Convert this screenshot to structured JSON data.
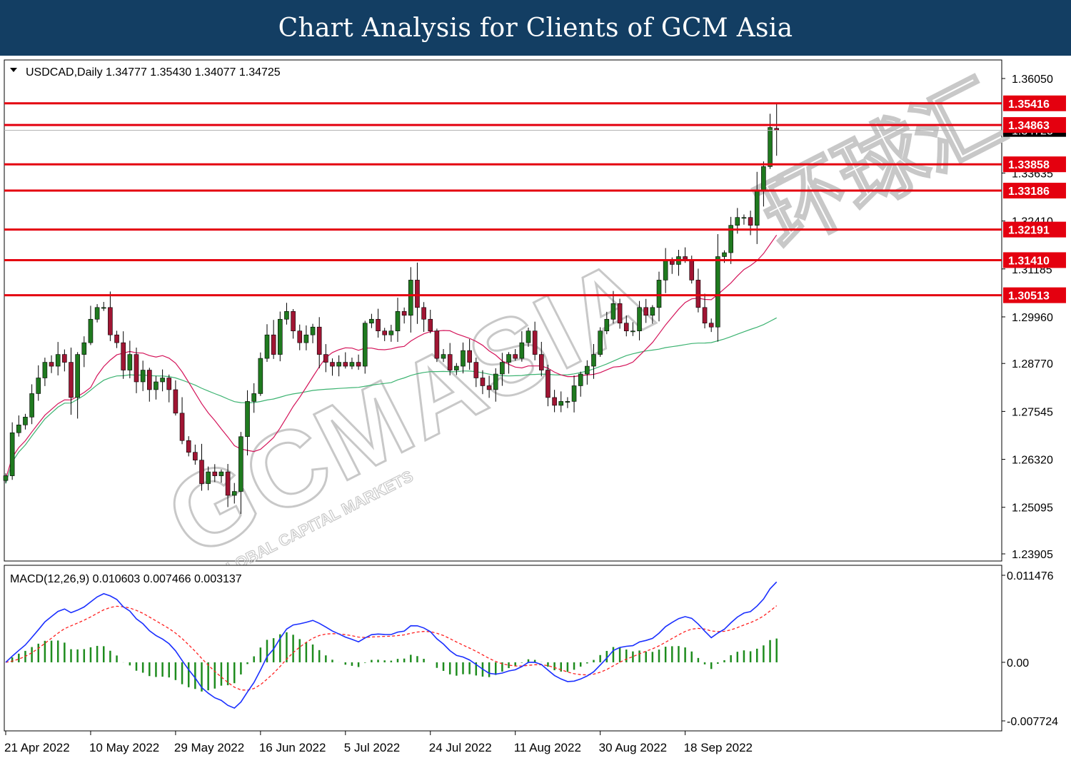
{
  "banner": {
    "title": "Chart Analysis for Clients of GCM Asia"
  },
  "watermark": {
    "main": "GCMASIA",
    "sub": "GLOBAL CAPITAL MARKETS",
    "brand_chars": "环球汇"
  },
  "colors": {
    "banner": "#133e63",
    "bull_candle": "#1f7a1f",
    "bear_candle": "#a01533",
    "ma_fast": "#d4145a",
    "ma_slow": "#3cb371",
    "level_line": "#e4000f",
    "macd_line": "#1a2fff",
    "signal_line": "#ff2020",
    "histogram": "#1e8c1e"
  },
  "chart_data": [
    {
      "type": "candlestick",
      "symbol": "USDCAD",
      "timeframe": "Daily",
      "header": "USDCAD,Daily  1.34777 1.35430 1.34077 1.34725",
      "ohlc_last": {
        "open": 1.34777,
        "high": 1.3543,
        "low": 1.34077,
        "close": 1.34725
      },
      "ylim": [
        1.23905,
        1.3605
      ],
      "y_ticks": [
        "1.36050",
        "1.33635",
        "1.32410",
        "1.31185",
        "1.29960",
        "1.28770",
        "1.27545",
        "1.26320",
        "1.25095",
        "1.23905"
      ],
      "current_price_label": "1.34725",
      "x_ticks": [
        {
          "label": "21 Apr 2022",
          "index": 0
        },
        {
          "label": "10 May 2022",
          "index": 13
        },
        {
          "label": "29 May 2022",
          "index": 26
        },
        {
          "label": "16 Jun 2022",
          "index": 39
        },
        {
          "label": "5 Jul 2022",
          "index": 52
        },
        {
          "label": "24 Jul 2022",
          "index": 65
        },
        {
          "label": "11 Aug 2022",
          "index": 78
        },
        {
          "label": "30 Aug 2022",
          "index": 91
        },
        {
          "label": "18 Sep 2022",
          "index": 104
        }
      ],
      "levels": [
        {
          "value": 1.35416,
          "label": "1.35416"
        },
        {
          "value": 1.34863,
          "label": "1.34863"
        },
        {
          "value": 1.33858,
          "label": "1.33858"
        },
        {
          "value": 1.33186,
          "label": "1.33186"
        },
        {
          "value": 1.32191,
          "label": "1.32191"
        },
        {
          "value": 1.3141,
          "label": "1.31410"
        },
        {
          "value": 1.30513,
          "label": "1.30513"
        }
      ],
      "closes": [
        1.259,
        1.27,
        1.272,
        1.274,
        1.28,
        1.284,
        1.288,
        1.287,
        1.29,
        1.288,
        1.279,
        1.29,
        1.293,
        1.299,
        1.302,
        1.302,
        1.295,
        1.293,
        1.286,
        1.29,
        1.283,
        1.286,
        1.281,
        1.283,
        1.284,
        1.281,
        1.275,
        1.268,
        1.265,
        1.263,
        1.257,
        1.26,
        1.259,
        1.26,
        1.254,
        1.255,
        1.269,
        1.278,
        1.28,
        1.289,
        1.295,
        1.29,
        1.299,
        1.301,
        1.296,
        1.293,
        1.295,
        1.297,
        1.29,
        1.288,
        1.287,
        1.288,
        1.287,
        1.288,
        1.287,
        1.298,
        1.299,
        1.296,
        1.295,
        1.296,
        1.301,
        1.3,
        1.309,
        1.302,
        1.299,
        1.296,
        1.289,
        1.29,
        1.286,
        1.287,
        1.291,
        1.288,
        1.284,
        1.282,
        1.281,
        1.285,
        1.288,
        1.29,
        1.289,
        1.293,
        1.296,
        1.29,
        1.286,
        1.279,
        1.277,
        1.278,
        1.278,
        1.282,
        1.285,
        1.287,
        1.29,
        1.296,
        1.299,
        1.303,
        1.298,
        1.296,
        1.296,
        1.302,
        1.3,
        1.302,
        1.309,
        1.314,
        1.313,
        1.315,
        1.314,
        1.309,
        1.302,
        1.298,
        1.297,
        1.315,
        1.316,
        1.323,
        1.325,
        1.325,
        1.323,
        1.332,
        1.338,
        1.348,
        1.3473
      ],
      "ma_fast_name": "",
      "ma_slow_name": ""
    },
    {
      "type": "macd",
      "header": "MACD(12,26,9) 0.010603 0.007466 0.003137",
      "params": [
        12,
        26,
        9
      ],
      "values": {
        "macd": 0.010603,
        "signal": 0.007466,
        "histogram": 0.003137
      },
      "ylim": [
        -0.007724,
        0.011476
      ],
      "y_ticks": [
        "0.011476",
        "0.00",
        "-0.007724"
      ]
    }
  ]
}
